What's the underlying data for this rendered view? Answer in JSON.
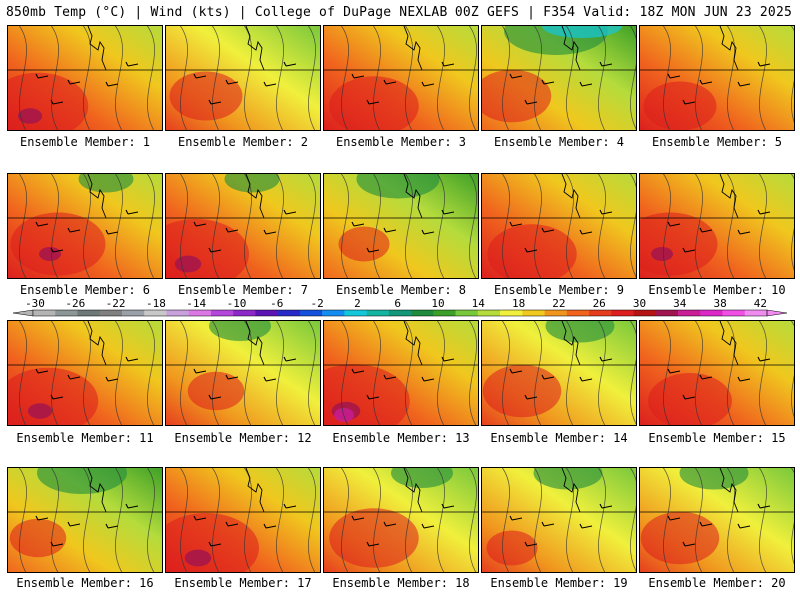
{
  "header": {
    "left": "850mb Temp (°C) | Wind (kts) | College of DuPage NEXLAB",
    "right": "00Z GEFS | F354 Valid: 18Z MON JUN 23 2025"
  },
  "colorbar": {
    "ticks": [
      "-30",
      "-26",
      "-22",
      "-18",
      "-14",
      "-10",
      "-6",
      "-2",
      "2",
      "6",
      "10",
      "14",
      "18",
      "22",
      "26",
      "30",
      "34",
      "38",
      "42"
    ],
    "colors": [
      "#b4b4b4",
      "#8c9696",
      "#6e7878",
      "#808080",
      "#9aa0a8",
      "#c8c8c8",
      "#c8a0dc",
      "#dc78e6",
      "#b446dc",
      "#8c28c8",
      "#5a14b4",
      "#2828c8",
      "#1450dc",
      "#148cf0",
      "#14c8dc",
      "#14b4a0",
      "#149678",
      "#1e8c3c",
      "#3ca028",
      "#78c83c",
      "#b4dc3c",
      "#f0f03c",
      "#f0c81e",
      "#f0961e",
      "#f0641e",
      "#e63c1e",
      "#dc1e1e",
      "#b41414",
      "#a01450",
      "#c81e96",
      "#dc28c8",
      "#f050e6",
      "#f08cf0"
    ]
  },
  "panels": [
    {
      "label": "Ensemble Member: 1",
      "warmth": 0.8,
      "hot": 0.55,
      "cool": 0.1
    },
    {
      "label": "Ensemble Member: 2",
      "warmth": 0.7,
      "hot": 0.3,
      "cool": 0.2
    },
    {
      "label": "Ensemble Member: 3",
      "warmth": 0.75,
      "hot": 0.45,
      "cool": 0.15
    },
    {
      "label": "Ensemble Member: 4",
      "warmth": 0.45,
      "hot": 0.35,
      "cool": 0.6
    },
    {
      "label": "Ensemble Member: 5",
      "warmth": 0.75,
      "hot": 0.3,
      "cool": 0.15
    },
    {
      "label": "Ensemble Member: 6",
      "warmth": 0.75,
      "hot": 0.5,
      "cool": 0.25
    },
    {
      "label": "Ensemble Member: 7",
      "warmth": 0.75,
      "hot": 0.6,
      "cool": 0.25
    },
    {
      "label": "Ensemble Member: 8",
      "warmth": 0.45,
      "hot": 0.1,
      "cool": 0.45
    },
    {
      "label": "Ensemble Member: 9",
      "warmth": 0.85,
      "hot": 0.45,
      "cool": 0.2
    },
    {
      "label": "Ensemble Member: 10",
      "warmth": 0.8,
      "hot": 0.5,
      "cool": 0.2
    },
    {
      "label": "Ensemble Member: 11",
      "warmth": 0.85,
      "hot": 0.55,
      "cool": 0.05
    },
    {
      "label": "Ensemble Member: 12",
      "warmth": 0.6,
      "hot": 0.15,
      "cool": 0.3
    },
    {
      "label": "Ensemble Member: 13",
      "warmth": 0.75,
      "hot": 0.65,
      "cool": 0.2
    },
    {
      "label": "Ensemble Member: 14",
      "warmth": 0.7,
      "hot": 0.35,
      "cool": 0.35
    },
    {
      "label": "Ensemble Member: 15",
      "warmth": 0.85,
      "hot": 0.4,
      "cool": 0.15
    },
    {
      "label": "Ensemble Member: 16",
      "warmth": 0.55,
      "hot": 0.15,
      "cool": 0.5
    },
    {
      "label": "Ensemble Member: 17",
      "warmth": 0.85,
      "hot": 0.6,
      "cool": 0.05
    },
    {
      "label": "Ensemble Member: 18",
      "warmth": 0.7,
      "hot": 0.45,
      "cool": 0.3
    },
    {
      "label": "Ensemble Member: 19",
      "warmth": 0.6,
      "hot": 0.1,
      "cool": 0.35
    },
    {
      "label": "Ensemble Member: 20",
      "warmth": 0.7,
      "hot": 0.35,
      "cool": 0.35
    }
  ]
}
